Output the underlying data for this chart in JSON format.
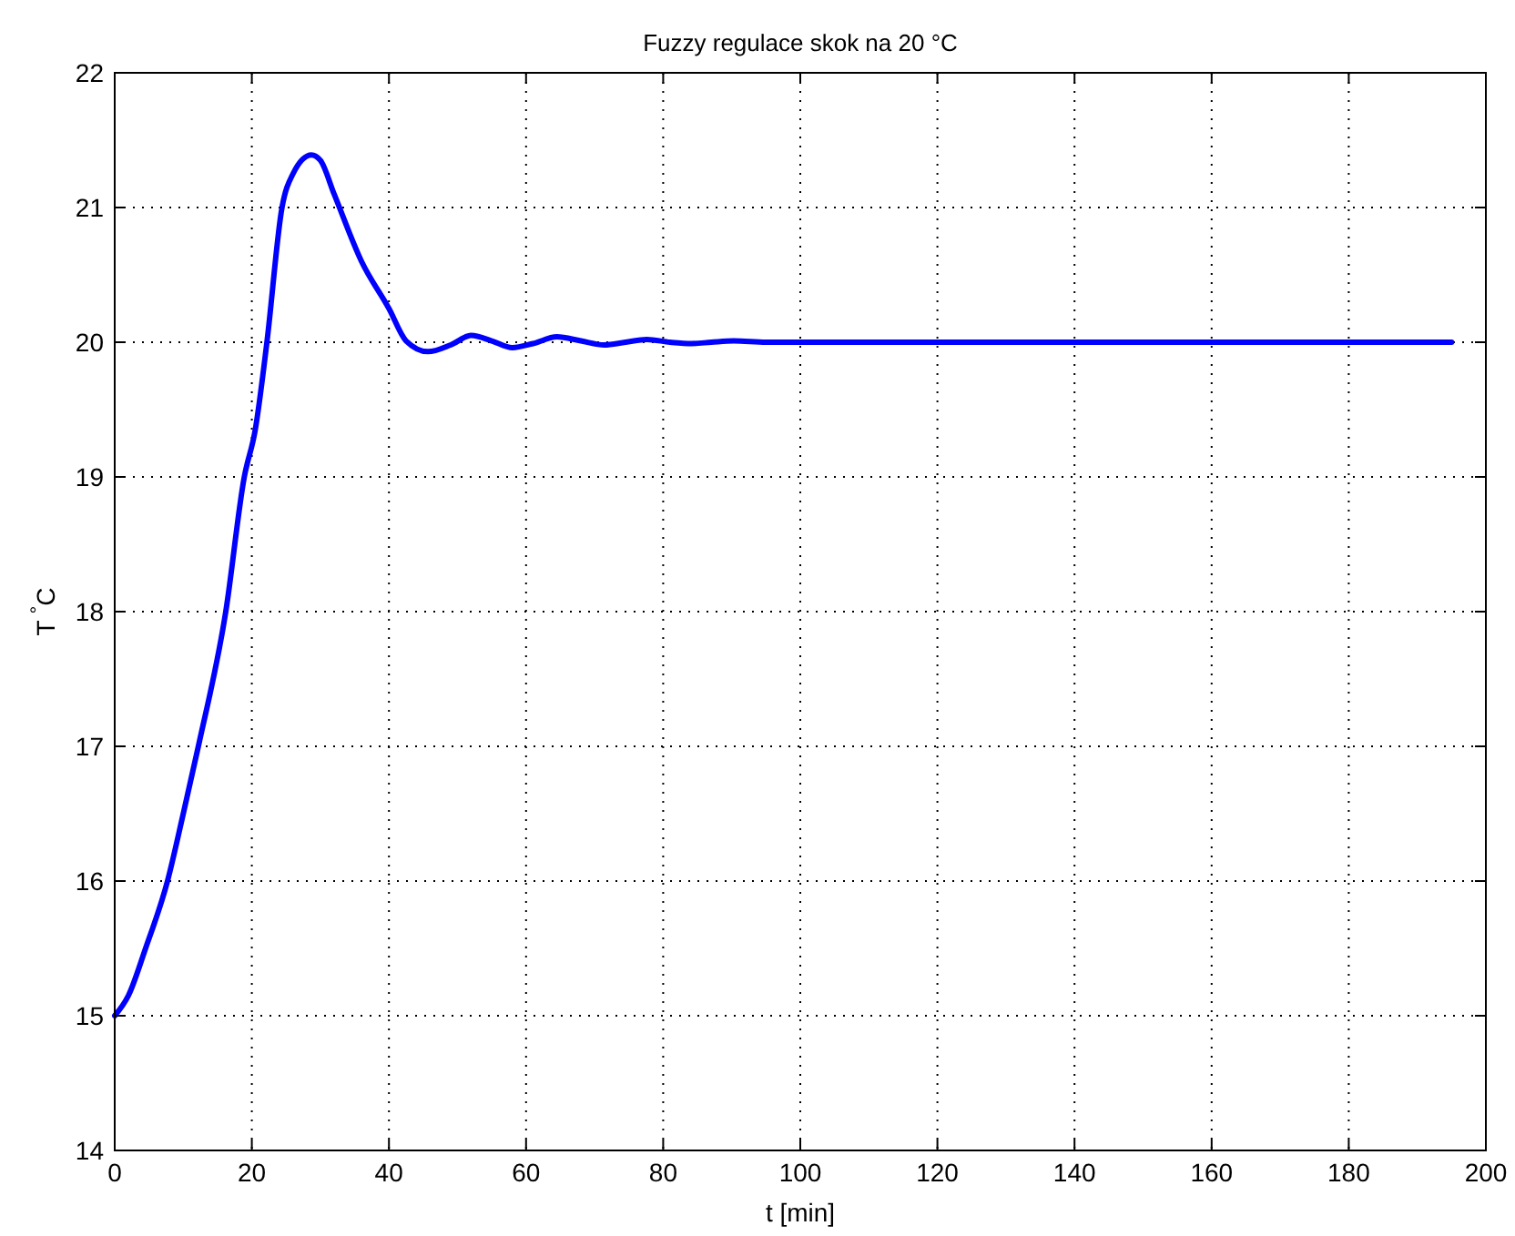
{
  "chart_data": {
    "type": "line",
    "title": "Fuzzy regulace skok na 20 °C",
    "xlabel": "t [min]",
    "ylabel": "T $^{°}$C",
    "series": [
      {
        "color": "#0000ff",
        "x": [
          0,
          2,
          4.5,
          7.7,
          10,
          12.2,
          16.2,
          18.9,
          20.5,
          22.2,
          24.4,
          26,
          28.7,
          30,
          32,
          36,
          40,
          42.5,
          45.7,
          49,
          52,
          55,
          58,
          61,
          64.5,
          68,
          71.4,
          74.5,
          77.6,
          81,
          84.2,
          87,
          90.3,
          95,
          100,
          105,
          110,
          115,
          120,
          130,
          140,
          160,
          180,
          195
        ],
        "values": [
          15,
          15.15,
          15.5,
          16,
          16.5,
          17,
          18,
          19,
          19.35,
          20,
          21,
          21.25,
          21.39,
          21.35,
          21.1,
          20.6,
          20.25,
          20.01,
          19.93,
          19.98,
          20.05,
          20.01,
          19.96,
          19.99,
          20.04,
          20.01,
          19.98,
          20,
          20.02,
          20,
          19.99,
          20,
          20.01,
          20,
          20,
          20,
          20,
          20,
          20,
          20,
          20,
          20,
          20,
          20
        ]
      }
    ],
    "xlim": [
      0,
      200
    ],
    "ylim": [
      14,
      22
    ],
    "xticks": [
      0,
      20,
      40,
      60,
      80,
      100,
      120,
      140,
      160,
      180,
      200
    ],
    "yticks": [
      14,
      15,
      16,
      17,
      18,
      19,
      20,
      21,
      22
    ],
    "grid": true,
    "line_style": "solid",
    "marker": "none"
  }
}
